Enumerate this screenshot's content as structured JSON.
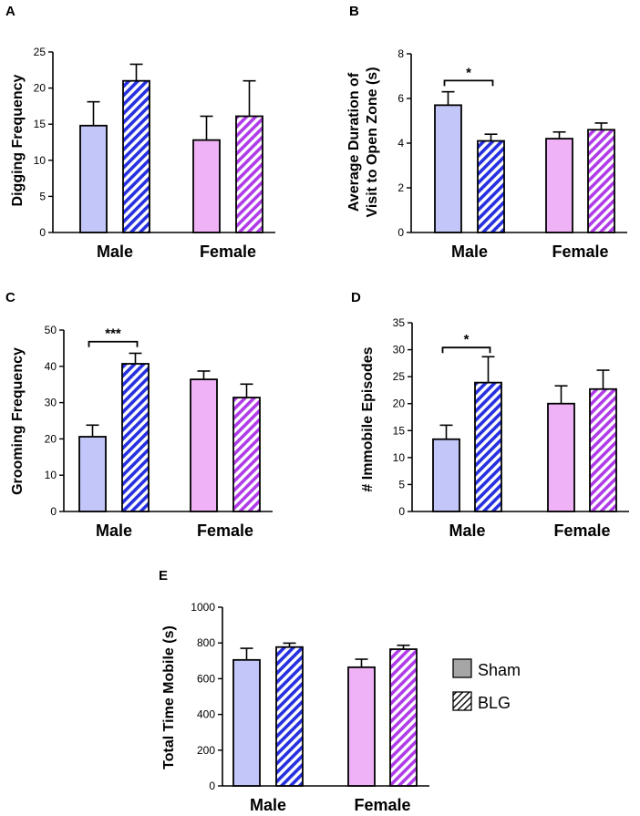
{
  "colors": {
    "male_sham": "#c3c6f8",
    "male_blg": "#2630e0",
    "female_sham": "#f0b2f7",
    "female_blg": "#b03ce8",
    "legend_fill": "#a6a6a6",
    "stroke": "#000000"
  },
  "legend": {
    "items": [
      "Sham",
      "BLG"
    ]
  },
  "chart_data": [
    {
      "panel": "A",
      "type": "bar",
      "ylabel": "Digging Frequency",
      "categories": [
        "Male",
        "Female"
      ],
      "ylim": [
        0,
        25
      ],
      "yticks": [
        0,
        5,
        10,
        15,
        20,
        25
      ],
      "series": [
        {
          "name": "Sham",
          "values": [
            14.8,
            12.8
          ],
          "errors": [
            3.3,
            3.3
          ]
        },
        {
          "name": "BLG",
          "values": [
            21.0,
            16.1
          ],
          "errors": [
            2.3,
            4.9
          ]
        }
      ],
      "significance": []
    },
    {
      "panel": "B",
      "type": "bar",
      "ylabel": "Average Duration of Visit to Open Zone (s)",
      "ylabel_lines": [
        "Average Duration of",
        "Visit to Open Zone (s)"
      ],
      "categories": [
        "Male",
        "Female"
      ],
      "ylim": [
        0,
        8
      ],
      "yticks": [
        0,
        2,
        4,
        6,
        8
      ],
      "series": [
        {
          "name": "Sham",
          "values": [
            5.7,
            4.2
          ],
          "errors": [
            0.6,
            0.3
          ]
        },
        {
          "name": "BLG",
          "values": [
            4.1,
            4.6
          ],
          "errors": [
            0.3,
            0.3
          ]
        }
      ],
      "significance": [
        {
          "category": "Male",
          "label": "*",
          "y": 6.8
        }
      ]
    },
    {
      "panel": "C",
      "type": "bar",
      "ylabel": "Grooming  Frequency",
      "categories": [
        "Male",
        "Female"
      ],
      "ylim": [
        0,
        50
      ],
      "yticks": [
        0,
        10,
        20,
        30,
        40,
        50
      ],
      "series": [
        {
          "name": "Sham",
          "values": [
            20.6,
            36.4
          ],
          "errors": [
            3.2,
            2.3
          ]
        },
        {
          "name": "BLG",
          "values": [
            40.7,
            31.4
          ],
          "errors": [
            2.9,
            3.7
          ]
        }
      ],
      "significance": [
        {
          "category": "Male",
          "label": "***",
          "y": 46.8
        }
      ]
    },
    {
      "panel": "D",
      "type": "bar",
      "ylabel": "# Immobile Episodes",
      "categories": [
        "Male",
        "Female"
      ],
      "ylim": [
        0,
        35
      ],
      "yticks": [
        0,
        5,
        10,
        15,
        20,
        25,
        30,
        35
      ],
      "series": [
        {
          "name": "Sham",
          "values": [
            13.4,
            20.0
          ],
          "errors": [
            2.6,
            3.3
          ]
        },
        {
          "name": "BLG",
          "values": [
            23.9,
            22.7
          ],
          "errors": [
            4.8,
            3.5
          ]
        }
      ],
      "significance": [
        {
          "category": "Male",
          "label": "*",
          "y": 30.4
        }
      ]
    },
    {
      "panel": "E",
      "type": "bar",
      "ylabel": "Total Time Mobile (s)",
      "categories": [
        "Male",
        "Female"
      ],
      "ylim": [
        0,
        1000
      ],
      "yticks": [
        0,
        200,
        400,
        600,
        800,
        1000
      ],
      "series": [
        {
          "name": "Sham",
          "values": [
            705,
            664
          ],
          "errors": [
            65,
            45
          ]
        },
        {
          "name": "BLG",
          "values": [
            777,
            765
          ],
          "errors": [
            22,
            22
          ]
        }
      ],
      "significance": []
    }
  ]
}
